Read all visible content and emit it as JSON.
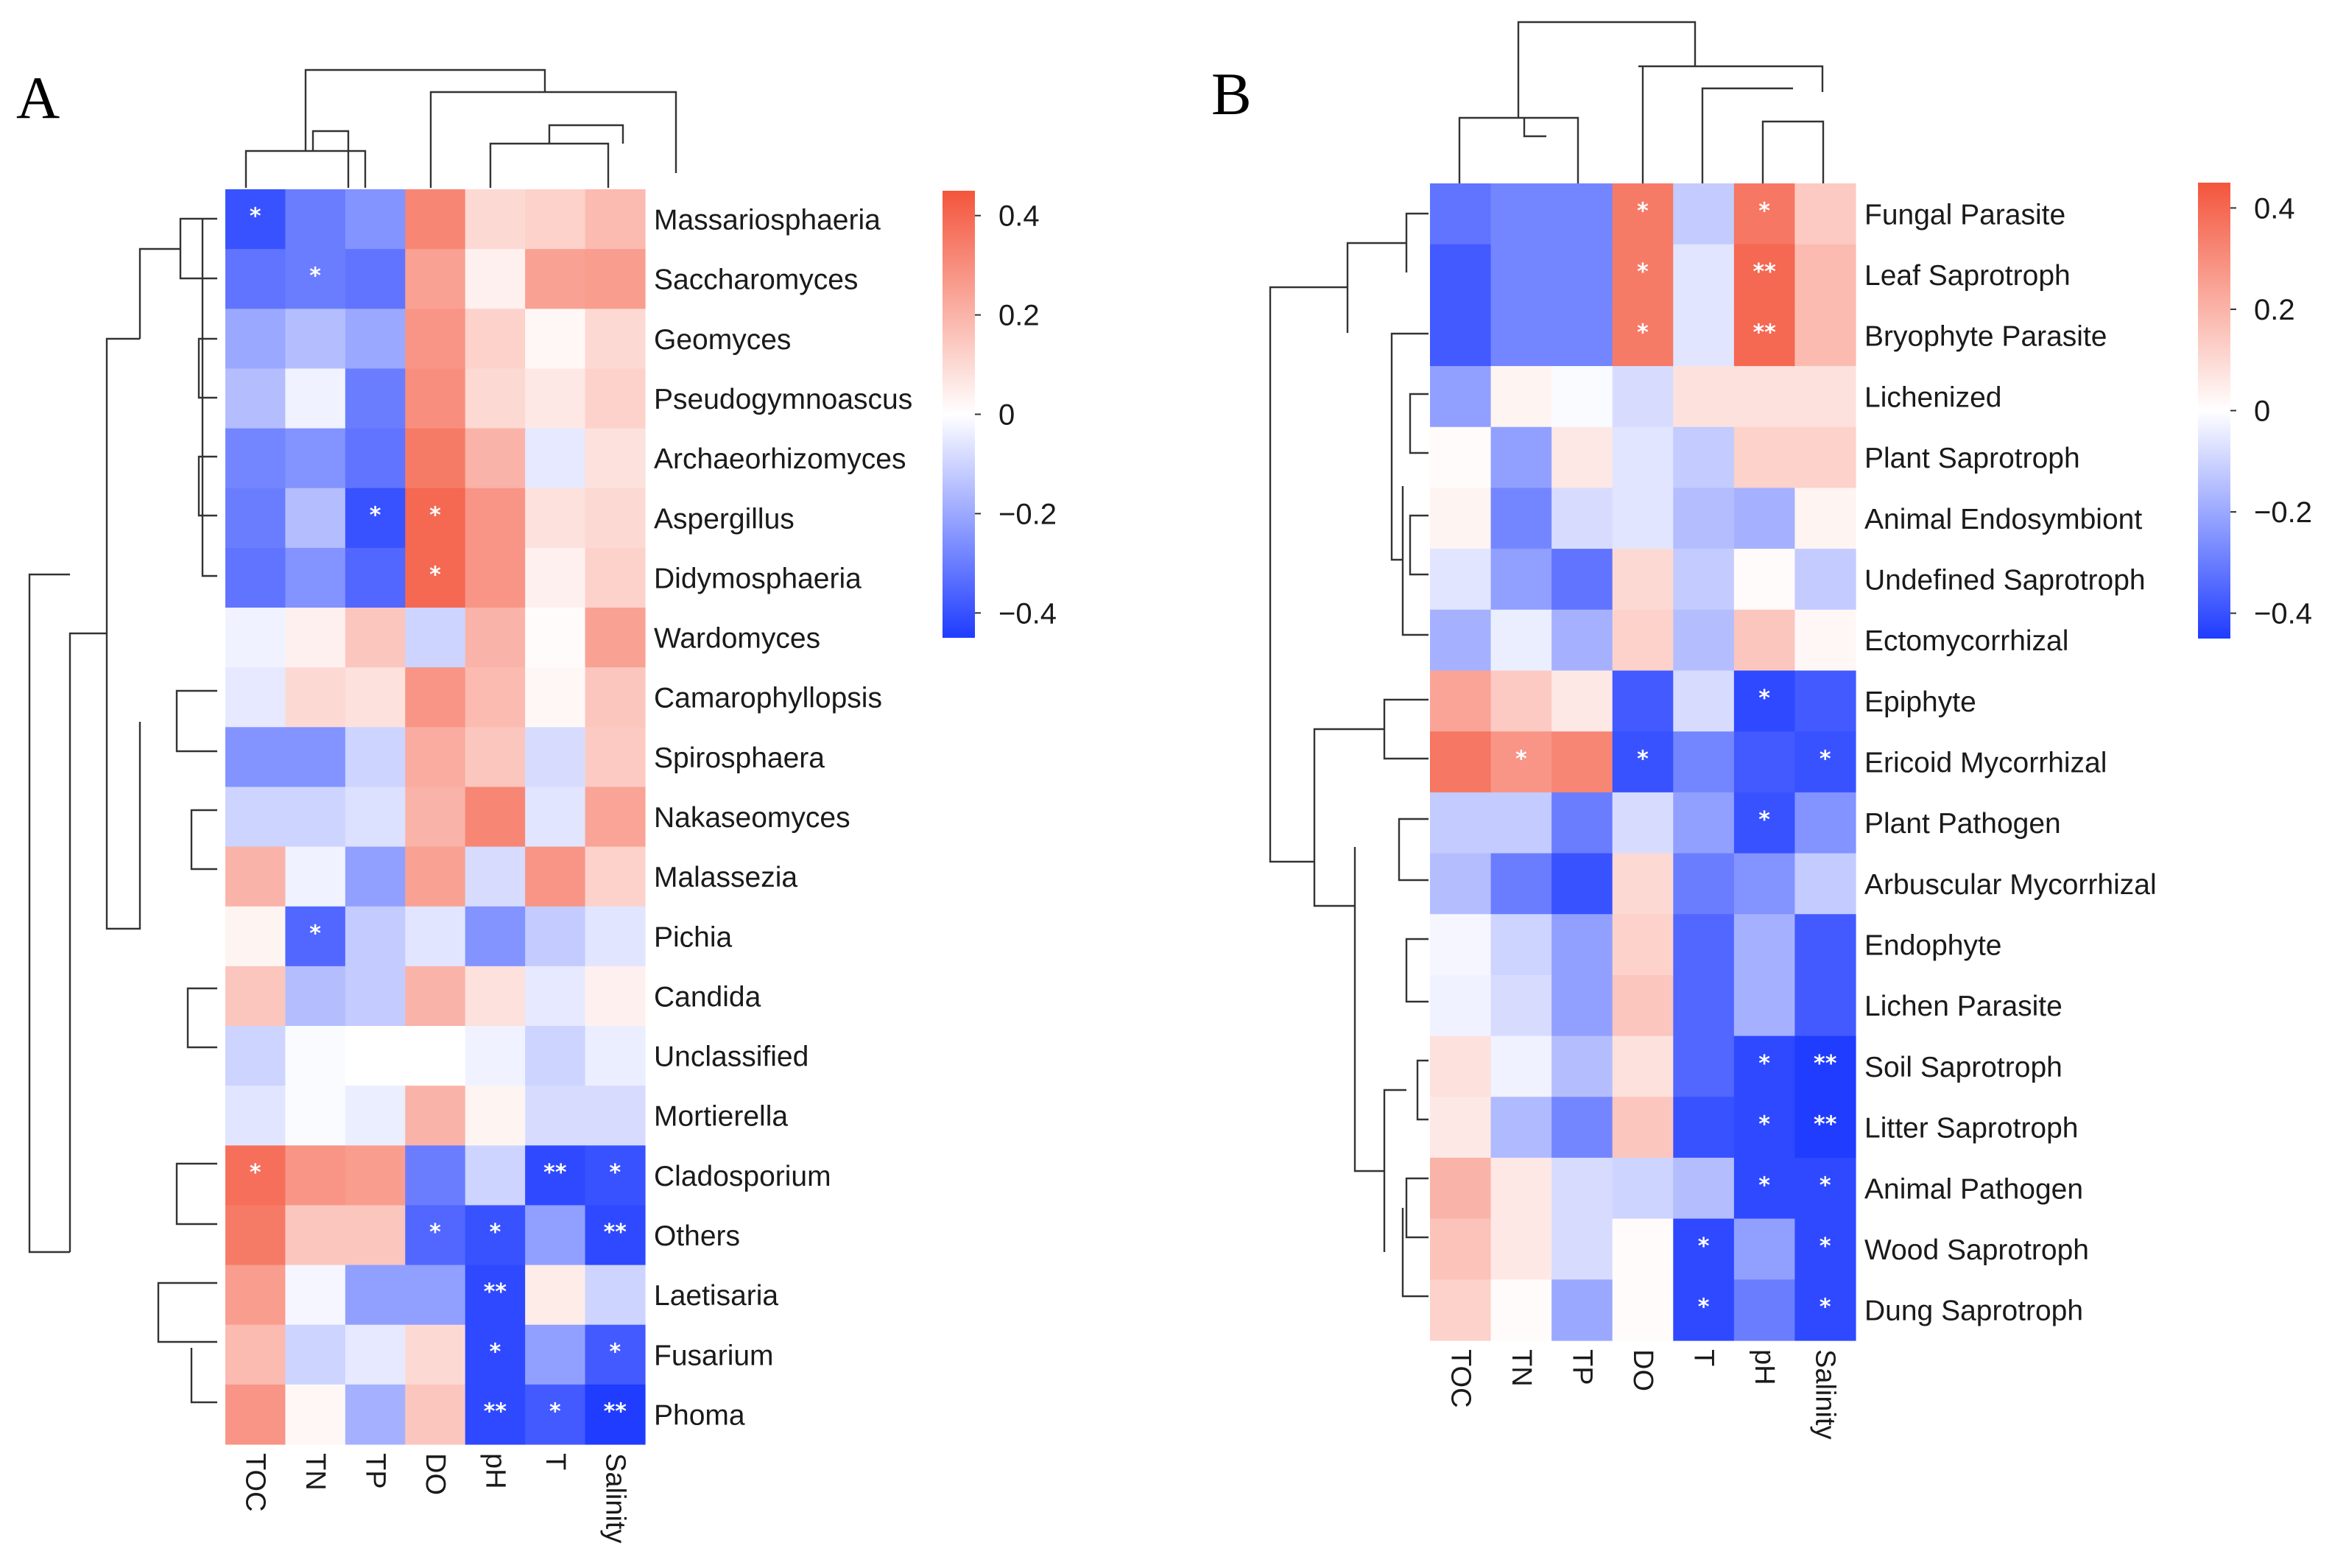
{
  "chart_data": [
    {
      "type": "heatmap",
      "panel_label": "A",
      "columns": [
        "TOC",
        "TN",
        "TP",
        "DO",
        "pH",
        "T",
        "Salinity"
      ],
      "rows": [
        "Massariosphaeria",
        "Saccharomyces",
        "Geomyces",
        "Pseudogymnoascus",
        "Archaeorhizomyces",
        "Aspergillus",
        "Didymosphaeria",
        "Wardomyces",
        "Camarophyllopsis",
        "Spirosphaera",
        "Nakaseomyces",
        "Malassezia",
        "Pichia",
        "Candida",
        "Unclassified",
        "Mortierella",
        "Cladosporium",
        "Others",
        "Laetisaria",
        "Fusarium",
        "Phoma"
      ],
      "values": [
        [
          -0.4,
          -0.3,
          -0.25,
          0.32,
          0.1,
          0.12,
          0.18
        ],
        [
          -0.32,
          -0.3,
          -0.32,
          0.25,
          0.04,
          0.25,
          0.26
        ],
        [
          -0.2,
          -0.15,
          -0.2,
          0.28,
          0.12,
          0.02,
          0.1
        ],
        [
          -0.15,
          -0.03,
          -0.3,
          0.3,
          0.1,
          0.06,
          0.12
        ],
        [
          -0.28,
          -0.25,
          -0.32,
          0.35,
          0.2,
          -0.05,
          0.08
        ],
        [
          -0.3,
          -0.15,
          -0.4,
          0.4,
          0.28,
          0.08,
          0.1
        ],
        [
          -0.32,
          -0.25,
          -0.35,
          0.4,
          0.28,
          0.04,
          0.12
        ],
        [
          -0.03,
          0.04,
          0.15,
          -0.1,
          0.2,
          0.01,
          0.25
        ],
        [
          -0.05,
          0.1,
          0.08,
          0.28,
          0.18,
          0.02,
          0.15
        ],
        [
          -0.25,
          -0.25,
          -0.1,
          0.22,
          0.15,
          -0.08,
          0.14
        ],
        [
          -0.1,
          -0.1,
          -0.07,
          0.2,
          0.32,
          -0.06,
          0.24
        ],
        [
          0.2,
          -0.03,
          -0.22,
          0.25,
          -0.08,
          0.28,
          0.12
        ],
        [
          0.03,
          -0.35,
          -0.12,
          -0.06,
          -0.25,
          -0.12,
          -0.06
        ],
        [
          0.15,
          -0.15,
          -0.12,
          0.2,
          0.08,
          -0.05,
          0.04
        ],
        [
          -0.1,
          -0.01,
          0.0,
          0.0,
          -0.03,
          -0.1,
          -0.04
        ],
        [
          -0.06,
          -0.01,
          -0.04,
          0.2,
          0.03,
          -0.08,
          -0.08
        ],
        [
          0.38,
          0.28,
          0.26,
          -0.3,
          -0.1,
          -0.42,
          -0.4
        ],
        [
          0.35,
          0.15,
          0.15,
          -0.35,
          -0.4,
          -0.22,
          -0.42
        ],
        [
          0.26,
          -0.02,
          -0.22,
          -0.22,
          -0.42,
          0.05,
          -0.1
        ],
        [
          0.18,
          -0.1,
          -0.05,
          0.1,
          -0.42,
          -0.22,
          -0.38
        ],
        [
          0.28,
          0.02,
          -0.18,
          0.15,
          -0.42,
          -0.38,
          -0.45
        ]
      ],
      "significance": [
        [
          "*",
          "",
          "",
          "",
          "",
          "",
          ""
        ],
        [
          "",
          "*",
          "",
          "",
          "",
          "",
          ""
        ],
        [
          "",
          "",
          "",
          "",
          "",
          "",
          ""
        ],
        [
          "",
          "",
          "",
          "",
          "",
          "",
          ""
        ],
        [
          "",
          "",
          "",
          "",
          "",
          "",
          ""
        ],
        [
          "",
          "",
          "*",
          "*",
          "",
          "",
          ""
        ],
        [
          "",
          "",
          "",
          "*",
          "",
          "",
          ""
        ],
        [
          "",
          "",
          "",
          "",
          "",
          "",
          ""
        ],
        [
          "",
          "",
          "",
          "",
          "",
          "",
          ""
        ],
        [
          "",
          "",
          "",
          "",
          "",
          "",
          ""
        ],
        [
          "",
          "",
          "",
          "",
          "",
          "",
          ""
        ],
        [
          "",
          "",
          "",
          "",
          "",
          "",
          ""
        ],
        [
          "",
          "*",
          "",
          "",
          "",
          "",
          ""
        ],
        [
          "",
          "",
          "",
          "",
          "",
          "",
          ""
        ],
        [
          "",
          "",
          "",
          "",
          "",
          "",
          ""
        ],
        [
          "",
          "",
          "",
          "",
          "",
          "",
          ""
        ],
        [
          "*",
          "",
          "",
          "",
          "",
          "**",
          "*"
        ],
        [
          "",
          "",
          "",
          "*",
          "*",
          "",
          "**"
        ],
        [
          "",
          "",
          "",
          "",
          "**",
          "",
          ""
        ],
        [
          "",
          "",
          "",
          "",
          "*",
          "",
          "*"
        ],
        [
          "",
          "",
          "",
          "",
          "**",
          "*",
          "**"
        ]
      ],
      "color_scale": {
        "min": -0.45,
        "max": 0.45,
        "low": "#1f3cff",
        "mid": "#ffffff",
        "high": "#f4553c"
      },
      "colorbar_ticks": [
        "0.4",
        "0.2",
        "0",
        "−0.2",
        "−0.4"
      ],
      "colorbar_tick_values": [
        0.4,
        0.2,
        0,
        -0.2,
        -0.4
      ]
    },
    {
      "type": "heatmap",
      "panel_label": "B",
      "columns": [
        "TOC",
        "TN",
        "TP",
        "DO",
        "T",
        "pH",
        "Salinity"
      ],
      "rows": [
        "Fungal Parasite",
        "Leaf Saprotroph",
        "Bryophyte Parasite",
        "Lichenized",
        "Plant Saprotroph",
        "Animal Endosymbiont",
        "Undefined Saprotroph",
        "Ectomycorrhizal",
        "Epiphyte",
        "Ericoid Mycorrhizal",
        "Plant Pathogen",
        "Arbuscular Mycorrhizal",
        "Endophyte",
        "Lichen Parasite",
        "Soil Saprotroph",
        "Litter Saprotroph",
        "Animal Pathogen",
        "Wood Saprotroph",
        "Dung Saprotroph"
      ],
      "values": [
        [
          -0.32,
          -0.28,
          -0.28,
          0.35,
          -0.12,
          0.36,
          0.14
        ],
        [
          -0.38,
          -0.28,
          -0.28,
          0.35,
          -0.06,
          0.4,
          0.18
        ],
        [
          -0.38,
          -0.28,
          -0.28,
          0.35,
          -0.06,
          0.4,
          0.18
        ],
        [
          -0.22,
          0.03,
          -0.01,
          -0.08,
          0.08,
          0.08,
          0.08
        ],
        [
          0.01,
          -0.22,
          0.06,
          -0.06,
          -0.12,
          0.12,
          0.12
        ],
        [
          0.03,
          -0.28,
          -0.08,
          -0.06,
          -0.15,
          -0.18,
          0.03
        ],
        [
          -0.06,
          -0.22,
          -0.32,
          0.1,
          -0.12,
          0.01,
          -0.12
        ],
        [
          -0.18,
          -0.04,
          -0.18,
          0.12,
          -0.15,
          0.15,
          0.02
        ],
        [
          0.24,
          0.14,
          0.06,
          -0.38,
          -0.08,
          -0.42,
          -0.38
        ],
        [
          0.36,
          0.28,
          0.32,
          -0.4,
          -0.28,
          -0.38,
          -0.4
        ],
        [
          -0.12,
          -0.12,
          -0.3,
          -0.08,
          -0.22,
          -0.4,
          -0.25
        ],
        [
          -0.15,
          -0.3,
          -0.4,
          0.1,
          -0.3,
          -0.25,
          -0.12
        ],
        [
          -0.02,
          -0.1,
          -0.22,
          0.12,
          -0.35,
          -0.18,
          -0.38
        ],
        [
          -0.03,
          -0.08,
          -0.22,
          0.15,
          -0.35,
          -0.18,
          -0.38
        ],
        [
          0.08,
          -0.03,
          -0.15,
          0.08,
          -0.35,
          -0.42,
          -0.48
        ],
        [
          0.06,
          -0.16,
          -0.28,
          0.15,
          -0.4,
          -0.42,
          -0.48
        ],
        [
          0.2,
          0.06,
          -0.08,
          -0.1,
          -0.15,
          -0.42,
          -0.42
        ],
        [
          0.16,
          0.06,
          -0.08,
          0.01,
          -0.42,
          -0.22,
          -0.42
        ],
        [
          0.12,
          0.01,
          -0.2,
          0.01,
          -0.42,
          -0.3,
          -0.42
        ]
      ],
      "significance": [
        [
          "",
          "",
          "",
          "*",
          "",
          "*",
          ""
        ],
        [
          "",
          "",
          "",
          "*",
          "",
          "**",
          ""
        ],
        [
          "",
          "",
          "",
          "*",
          "",
          "**",
          ""
        ],
        [
          "",
          "",
          "",
          "",
          "",
          "",
          ""
        ],
        [
          "",
          "",
          "",
          "",
          "",
          "",
          ""
        ],
        [
          "",
          "",
          "",
          "",
          "",
          "",
          ""
        ],
        [
          "",
          "",
          "",
          "",
          "",
          "",
          ""
        ],
        [
          "",
          "",
          "",
          "",
          "",
          "",
          ""
        ],
        [
          "",
          "",
          "",
          "",
          "",
          "*",
          ""
        ],
        [
          "",
          "*",
          "",
          "*",
          "",
          "",
          "*"
        ],
        [
          "",
          "",
          "",
          "",
          "",
          "*",
          ""
        ],
        [
          "",
          "",
          "",
          "",
          "",
          "",
          ""
        ],
        [
          "",
          "",
          "",
          "",
          "",
          "",
          ""
        ],
        [
          "",
          "",
          "",
          "",
          "",
          "",
          ""
        ],
        [
          "",
          "",
          "",
          "",
          "",
          "*",
          "**"
        ],
        [
          "",
          "",
          "",
          "",
          "",
          "*",
          "**"
        ],
        [
          "",
          "",
          "",
          "",
          "",
          "*",
          "*"
        ],
        [
          "",
          "",
          "",
          "",
          "*",
          "",
          "*"
        ],
        [
          "",
          "",
          "",
          "",
          "*",
          "",
          "*"
        ]
      ],
      "color_scale": {
        "min": -0.45,
        "max": 0.45,
        "low": "#1f3cff",
        "mid": "#ffffff",
        "high": "#f4553c"
      },
      "colorbar_ticks": [
        "0.4",
        "0.2",
        "0",
        "−0.2",
        "−0.4"
      ],
      "colorbar_tick_values": [
        0.4,
        0.2,
        0,
        -0.2,
        -0.4
      ]
    }
  ]
}
